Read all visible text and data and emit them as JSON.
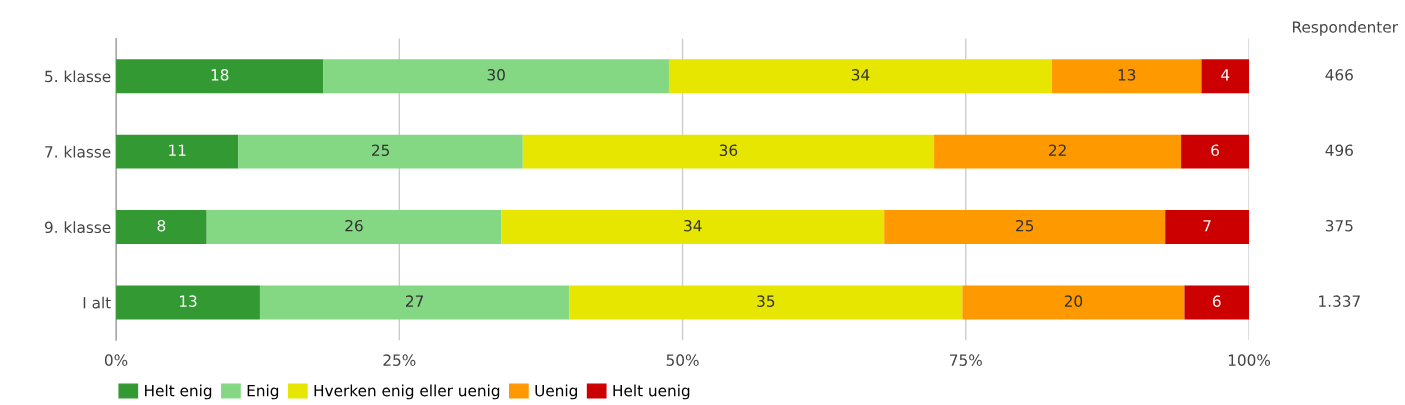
{
  "chart_data": {
    "type": "bar",
    "orientation": "horizontal",
    "stacked": true,
    "categories": [
      "5. klasse",
      "7. klasse",
      "9. klasse",
      "I alt"
    ],
    "series": [
      {
        "name": "Helt enig",
        "color": "#339933",
        "values": [
          18.3,
          10.8,
          8.0,
          12.7
        ],
        "value_labels": [
          "18",
          "11",
          "8",
          "13"
        ]
      },
      {
        "name": "Enig",
        "color": "#84d884",
        "values": [
          30.5,
          25.1,
          26.0,
          27.3
        ],
        "value_labels": [
          "30",
          "25",
          "26",
          "27"
        ]
      },
      {
        "name": "Hverken enig eller uenig",
        "color": "#e6e600",
        "values": [
          33.8,
          36.3,
          33.8,
          34.7
        ],
        "value_labels": [
          "34",
          "36",
          "34",
          "35"
        ]
      },
      {
        "name": "Uenig",
        "color": "#ff9900",
        "values": [
          13.2,
          21.8,
          24.8,
          19.6
        ],
        "value_labels": [
          "13",
          "22",
          "25",
          "20"
        ]
      },
      {
        "name": "Helt uenig",
        "color": "#cc0000",
        "values": [
          4.2,
          6.0,
          7.4,
          5.7
        ],
        "value_labels": [
          "4",
          "6",
          "7",
          "6"
        ]
      }
    ],
    "xlim": [
      0,
      100
    ],
    "xticks": [
      {
        "value": 0,
        "label": "0%"
      },
      {
        "value": 25,
        "label": "25%"
      },
      {
        "value": 50,
        "label": "50%"
      },
      {
        "value": 75,
        "label": "75%"
      },
      {
        "value": 100,
        "label": "100%"
      }
    ],
    "grid": "x",
    "legend": "bottom left",
    "annotations": [
      "Respondenter",
      "466",
      "496",
      "375",
      "1.337"
    ]
  }
}
